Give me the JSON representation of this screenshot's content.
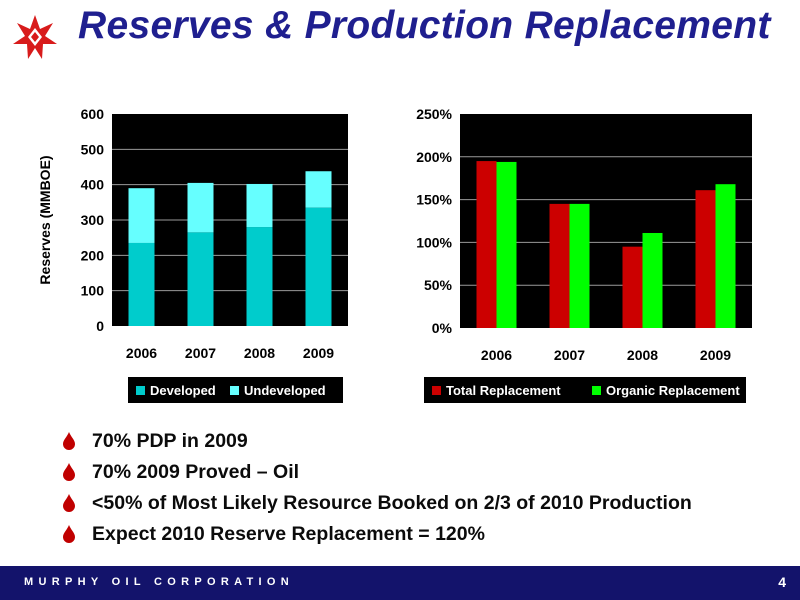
{
  "slide": {
    "title": "Reserves & Production Replacement",
    "page_number": "4",
    "footer": "MURPHY OIL CORPORATION"
  },
  "colors": {
    "title": "#1f1f8f",
    "footer_bg": "#13136b",
    "bullet": "#c00000",
    "developed": "#00cccc",
    "undeveloped": "#66ffff",
    "total_replacement": "#cc0000",
    "organic_replacement": "#00ff00",
    "plot_bg": "#000000"
  },
  "bullets": [
    "70% PDP in 2009",
    "70%  2009 Proved – Oil",
    "<50% of Most Likely Resource Booked on 2/3 of 2010 Production",
    "Expect 2010 Reserve Replacement = 120%"
  ],
  "chart_data": [
    {
      "type": "bar",
      "stacked": true,
      "categories": [
        "2006",
        "2007",
        "2008",
        "2009"
      ],
      "series": [
        {
          "name": "Developed",
          "values": [
            235,
            265,
            280,
            335
          ]
        },
        {
          "name": "Undeveloped",
          "values": [
            155,
            140,
            122,
            103
          ]
        }
      ],
      "ylabel": "Reserves (MMBOE)",
      "ylim": [
        0,
        600
      ],
      "yticks": [
        0,
        100,
        200,
        300,
        400,
        500,
        600
      ],
      "ytick_labels": [
        "0",
        "100",
        "200",
        "300",
        "400",
        "500",
        "600"
      ],
      "grid": true,
      "legend": "bottom"
    },
    {
      "type": "bar",
      "stacked": false,
      "categories": [
        "2006",
        "2007",
        "2008",
        "2009"
      ],
      "series": [
        {
          "name": "Total Replacement",
          "values": [
            195,
            145,
            95,
            161
          ]
        },
        {
          "name": "Organic Replacement",
          "values": [
            194,
            145,
            111,
            168
          ]
        }
      ],
      "ylim": [
        0,
        250
      ],
      "yticks": [
        0,
        50,
        100,
        150,
        200,
        250
      ],
      "ytick_labels": [
        "0%",
        "50%",
        "100%",
        "150%",
        "200%",
        "250%"
      ],
      "grid": true,
      "legend": "bottom"
    }
  ]
}
